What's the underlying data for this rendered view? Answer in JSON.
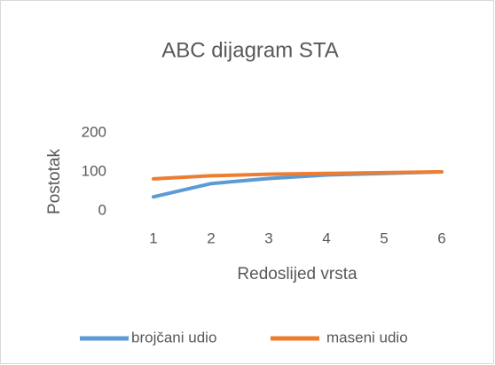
{
  "chart_data": {
    "type": "line",
    "title": "ABC dijagram STA",
    "x_label": "Redoslijed vrsta",
    "y_label": "Postotak",
    "categories": [
      "1",
      "2",
      "3",
      "4",
      "5",
      "6"
    ],
    "series": [
      {
        "name": "brojčani udio",
        "color": "#5b9bd5",
        "values": [
          36,
          70,
          83,
          92,
          96,
          100
        ]
      },
      {
        "name": "maseni udio",
        "color": "#ed7d31",
        "values": [
          82,
          90,
          94,
          96,
          98,
          100
        ]
      }
    ],
    "ylim": [
      0,
      200
    ],
    "yticks": [
      0,
      100,
      200
    ],
    "grid": false,
    "legend": "bottom"
  }
}
